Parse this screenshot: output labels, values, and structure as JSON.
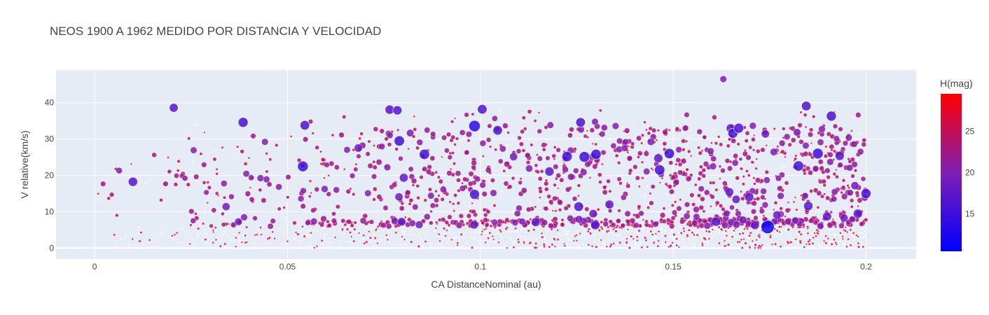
{
  "chart_data": {
    "type": "scatter",
    "title": "NEOS 1900 A 1962 MEDIDO POR DISTANCIA Y VELOCIDAD",
    "xlabel": "CA DistanceNominal (au)",
    "ylabel": "V relative(km/s)",
    "xlim": [
      -0.01,
      0.213
    ],
    "ylim": [
      -3,
      49
    ],
    "x_ticks": [
      0,
      0.05,
      0.1,
      0.15,
      0.2
    ],
    "x_tick_labels": [
      "0",
      "0.05",
      "0.1",
      "0.15",
      "0.2"
    ],
    "y_ticks": [
      0,
      10,
      20,
      30,
      40
    ],
    "y_tick_labels": [
      "0",
      "10",
      "20",
      "30",
      "40"
    ],
    "grid": true,
    "background": "#e5ecf6",
    "marker_size_encodes": "object size (inverse of H magnitude)",
    "colorbar": {
      "title": "H(mag)",
      "range": [
        10.5,
        29.5
      ],
      "ticks": [
        15,
        20,
        25
      ],
      "tick_labels": [
        "15",
        "20",
        "25"
      ],
      "colorscale": [
        [
          "0",
          "#0000ff"
        ],
        [
          "0.5",
          "#7f1fb3"
        ],
        [
          "1",
          "#ff0000"
        ]
      ]
    },
    "points_sample": [
      {
        "x": 0.0205,
        "y": 38.6,
        "h": 17.5
      },
      {
        "x": 0.0385,
        "y": 34.6,
        "h": 16.0
      },
      {
        "x": 0.0545,
        "y": 33.8,
        "h": 16.5
      },
      {
        "x": 0.054,
        "y": 22.5,
        "h": 15.0
      },
      {
        "x": 0.0765,
        "y": 38.1,
        "h": 17.0
      },
      {
        "x": 0.0785,
        "y": 37.9,
        "h": 17.0
      },
      {
        "x": 0.079,
        "y": 29.5,
        "h": 15.5
      },
      {
        "x": 0.0855,
        "y": 25.8,
        "h": 15.5
      },
      {
        "x": 0.0985,
        "y": 33.6,
        "h": 14.0
      },
      {
        "x": 0.0985,
        "y": 14.8,
        "h": 16.0
      },
      {
        "x": 0.1005,
        "y": 38.2,
        "h": 16.5
      },
      {
        "x": 0.1045,
        "y": 32.4,
        "h": 16.5
      },
      {
        "x": 0.1225,
        "y": 25.2,
        "h": 15.5
      },
      {
        "x": 0.126,
        "y": 34.6,
        "h": 16.5
      },
      {
        "x": 0.127,
        "y": 25.1,
        "h": 15.0
      },
      {
        "x": 0.13,
        "y": 25.8,
        "h": 15.5
      },
      {
        "x": 0.1255,
        "y": 11.4,
        "h": 16.5
      },
      {
        "x": 0.1465,
        "y": 21.5,
        "h": 15.5
      },
      {
        "x": 0.149,
        "y": 26.0,
        "h": 15.5
      },
      {
        "x": 0.1655,
        "y": 31.6,
        "h": 16.0
      },
      {
        "x": 0.167,
        "y": 33.0,
        "h": 16.0
      },
      {
        "x": 0.1745,
        "y": 5.8,
        "h": 11.5
      },
      {
        "x": 0.1825,
        "y": 22.6,
        "h": 15.5
      },
      {
        "x": 0.1845,
        "y": 39.1,
        "h": 16.5
      },
      {
        "x": 0.1875,
        "y": 26.0,
        "h": 15.0
      },
      {
        "x": 0.191,
        "y": 36.3,
        "h": 16.0
      },
      {
        "x": 0.2,
        "y": 15.0,
        "h": 16.0
      },
      {
        "x": 0.163,
        "y": 46.5,
        "h": 20.0
      }
    ]
  }
}
